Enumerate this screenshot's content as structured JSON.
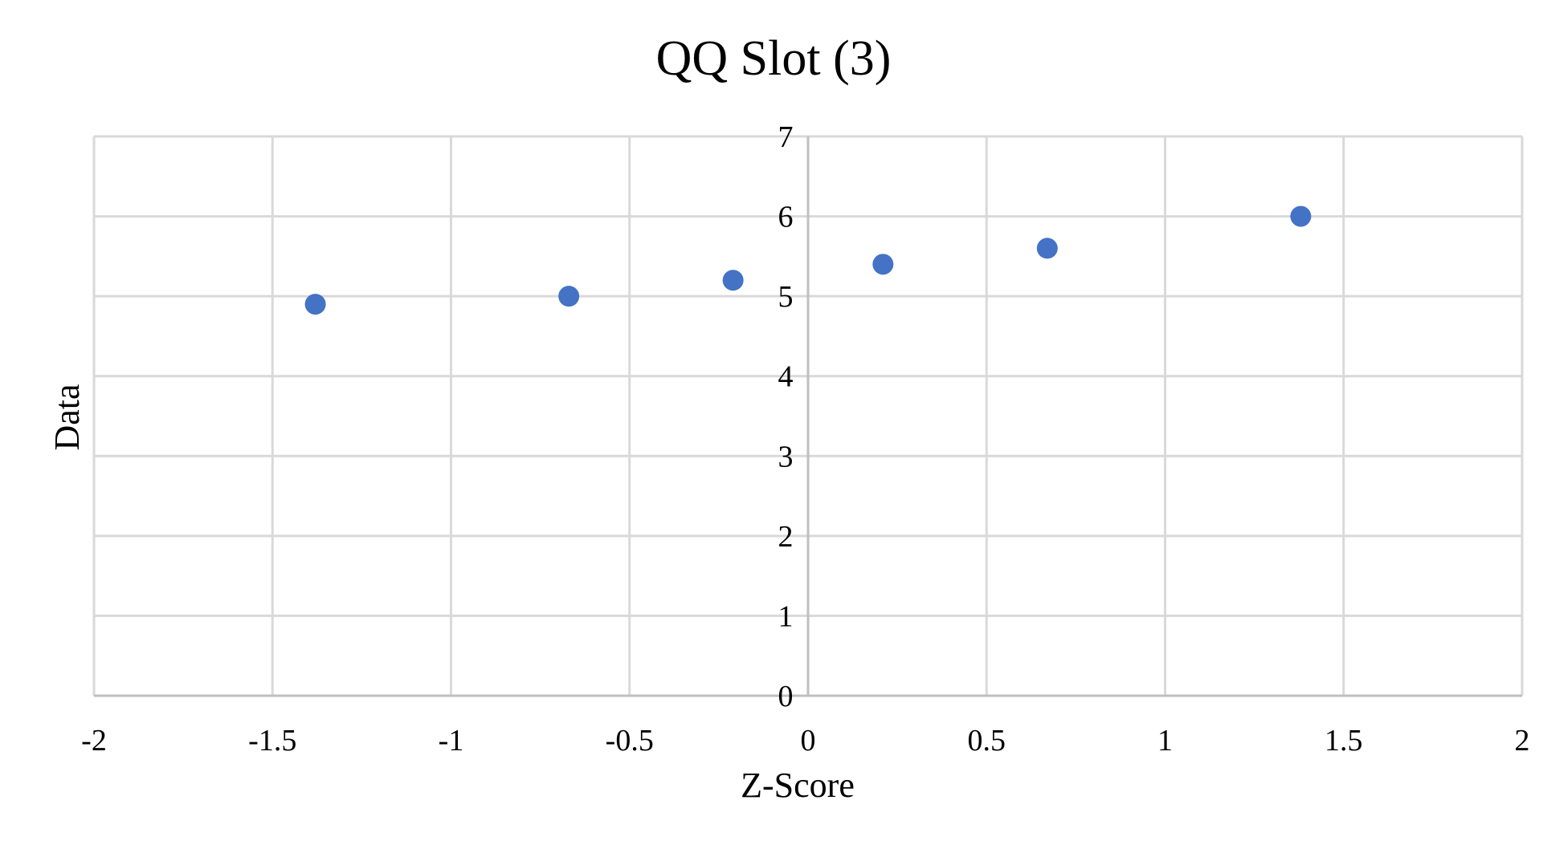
{
  "chart_data": {
    "type": "scatter",
    "title": "QQ Slot (3)",
    "xlabel": "Z-Score",
    "ylabel": "Data",
    "xlim": [
      -2,
      2
    ],
    "ylim": [
      0,
      7
    ],
    "x_ticks": [
      "-2",
      "-1.5",
      "-1",
      "-0.5",
      "0",
      "0.5",
      "1",
      "1.5",
      "2"
    ],
    "y_ticks": [
      "0",
      "1",
      "2",
      "3",
      "4",
      "5",
      "6",
      "7"
    ],
    "grid": true,
    "legend": "none",
    "series": [
      {
        "x": [
          -1.38,
          -0.67,
          -0.21,
          0.21,
          0.67,
          1.38
        ],
        "y": [
          4.9,
          5.0,
          5.2,
          5.4,
          5.6,
          6.0
        ],
        "color": "#4472C4"
      }
    ],
    "colors": {
      "grid": "#D9D9D9",
      "axis": "#BFBFBF",
      "marker": "#4472C4"
    }
  }
}
